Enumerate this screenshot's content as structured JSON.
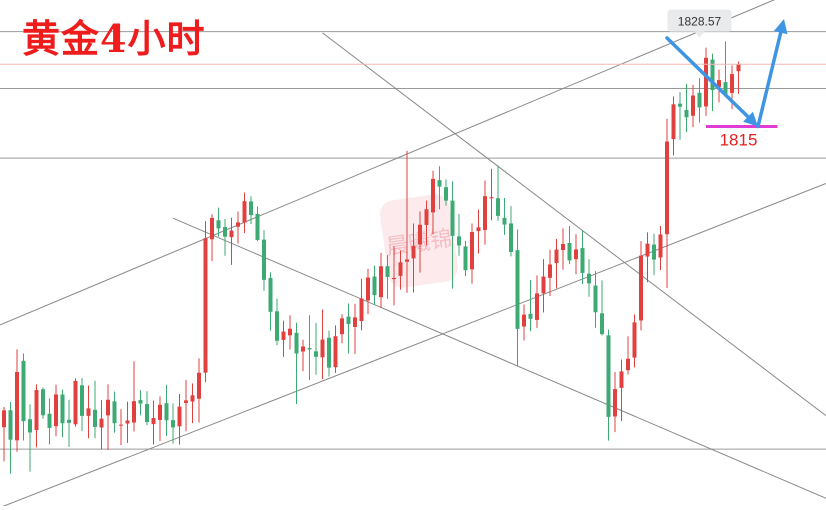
{
  "title": "黄金4小时",
  "watermark": "晨曦锦",
  "colors": {
    "up": "#e0413f",
    "down": "#3daa73",
    "grid": "#888888",
    "price_line": "#f3b6b4",
    "support": "#e13bd6",
    "label_red": "#e62020",
    "arrow": "#3e95e4",
    "tag_bg": "#e9eaec",
    "watermark": "#e86a78"
  },
  "chart_data": {
    "type": "candlestick",
    "title": "黄金4小时",
    "x": "time (4h bars)",
    "ylim": [
      1755.0,
      1835.0
    ],
    "horizontal_levels": [
      1810.0,
      1821.0,
      1830.0,
      1764.0
    ],
    "current_price_label": "1828.57",
    "support_label": "1815",
    "trendlines": [
      {
        "x": [
          0,
          124
        ],
        "y": [
          1783.9,
          1837.4
        ]
      },
      {
        "x": [
          0,
          124
        ],
        "y": [
          1755.0,
          1805.0
        ]
      },
      {
        "x": [
          26,
          124
        ],
        "y": [
          1800.5,
          1757.3
        ]
      },
      {
        "x": [
          49,
          124
        ],
        "y": [
          1829.8,
          1771.2
        ]
      },
      {
        "x": [
          102,
          116
        ],
        "y": [
          1829.0,
          1815.0
        ]
      },
      {
        "x": [
          116,
          120
        ],
        "y": [
          1815.0,
          1832.0
        ]
      }
    ],
    "candles": [
      [
        1767.46,
        1770.66,
        1762.06,
        1770.13
      ],
      [
        1770.14,
        1771.45,
        1760.09,
        1765.48
      ],
      [
        1765.38,
        1779.76,
        1763.57,
        1776.19
      ],
      [
        1777.95,
        1779.14,
        1765.35,
        1768.42
      ],
      [
        1768.72,
        1771.06,
        1760.44,
        1766.63
      ],
      [
        1767.02,
        1774.22,
        1764.26,
        1773.33
      ],
      [
        1773.46,
        1773.75,
        1768.8,
        1769.35
      ],
      [
        1769.59,
        1771.99,
        1764.75,
        1767.35
      ],
      [
        1767.62,
        1774.19,
        1766.03,
        1772.64
      ],
      [
        1772.63,
        1773.38,
        1765.87,
        1768.08
      ],
      [
        1768.63,
        1771.77,
        1764.33,
        1768.15
      ],
      [
        1767.92,
        1775.18,
        1767.55,
        1774.77
      ],
      [
        1774.08,
        1775.22,
        1766.83,
        1769.25
      ],
      [
        1769.25,
        1774.06,
        1765.71,
        1770.44
      ],
      [
        1770.21,
        1774.8,
        1765.72,
        1767.49
      ],
      [
        1767.41,
        1771.75,
        1763.94,
        1768.81
      ],
      [
        1769.32,
        1774.24,
        1763.88,
        1771.8
      ],
      [
        1771.54,
        1773.1,
        1766.61,
        1768.09
      ],
      [
        1767.82,
        1770.29,
        1764.63,
        1767.86
      ],
      [
        1768.04,
        1771.5,
        1764.99,
        1768.52
      ],
      [
        1768.2,
        1777.88,
        1766.78,
        1771.57
      ],
      [
        1771.75,
        1773.32,
        1769.32,
        1771.19
      ],
      [
        1771.13,
        1773.14,
        1767.76,
        1768.28
      ],
      [
        1767.95,
        1771.68,
        1764.73,
        1768.91
      ],
      [
        1768.61,
        1772.33,
        1765.25,
        1771.01
      ],
      [
        1771.26,
        1774.17,
        1766.06,
        1768.54
      ],
      [
        1768.57,
        1771.22,
        1764.87,
        1767.42
      ],
      [
        1767.6,
        1772.7,
        1764.71,
        1770.72
      ],
      [
        1771.29,
        1774.94,
        1766.82,
        1771.7
      ],
      [
        1771.52,
        1774.38,
        1768.1,
        1772.5
      ],
      [
        1771.96,
        1778.36,
        1768.19,
        1776.06
      ],
      [
        1776.08,
        1800.04,
        1774.58,
        1797.34
      ],
      [
        1797.17,
        1801.13,
        1793.72,
        1800.55
      ],
      [
        1800.18,
        1802.17,
        1797.58,
        1798.88
      ],
      [
        1799.1,
        1800.37,
        1794.57,
        1797.59
      ],
      [
        1797.5,
        1800.57,
        1793.13,
        1798.55
      ],
      [
        1799.15,
        1801.56,
        1796.49,
        1799.84
      ],
      [
        1799.82,
        1804.56,
        1798.15,
        1803.19
      ],
      [
        1803.16,
        1803.98,
        1799.57,
        1801.0
      ],
      [
        1801.17,
        1802.38,
        1796.88,
        1797.06
      ],
      [
        1797.11,
        1798.61,
        1789.02,
        1790.75
      ],
      [
        1791.06,
        1791.94,
        1782.71,
        1785.7
      ],
      [
        1785.78,
        1787.76,
        1780.43,
        1781.12
      ],
      [
        1781.26,
        1784.31,
        1778.58,
        1782.58
      ],
      [
        1781.98,
        1785.15,
        1779.74,
        1783.03
      ],
      [
        1782.38,
        1783.98,
        1771.13,
        1779.11
      ],
      [
        1779.43,
        1781.28,
        1776.32,
        1780.21
      ],
      [
        1779.99,
        1785.16,
        1774.9,
        1779.75
      ],
      [
        1779.46,
        1783.96,
        1775.76,
        1778.59
      ],
      [
        1778.51,
        1786.05,
        1775.06,
        1781.31
      ],
      [
        1781.6,
        1782.7,
        1775.47,
        1776.88
      ],
      [
        1776.95,
        1783.56,
        1776.04,
        1781.84
      ],
      [
        1782.17,
        1785.32,
        1780.75,
        1784.67
      ],
      [
        1784.95,
        1787.01,
        1779.09,
        1783.77
      ],
      [
        1783.31,
        1786.98,
        1779.03,
        1784.82
      ],
      [
        1784.24,
        1790.92,
        1782.79,
        1787.8
      ],
      [
        1787.49,
        1792.5,
        1785.34,
        1791.12
      ],
      [
        1791.28,
        1793.0,
        1786.77,
        1788.33
      ],
      [
        1788.02,
        1795.03,
        1786.33,
        1792.9
      ],
      [
        1792.92,
        1794.69,
        1787.74,
        1791.21
      ],
      [
        1790.87,
        1796.05,
        1786.72,
        1791.05
      ],
      [
        1791.38,
        1795.38,
        1789.2,
        1793.52
      ],
      [
        1793.62,
        1811.16,
        1788.71,
        1793.97
      ],
      [
        1794.15,
        1799.66,
        1788.75,
        1796.13
      ],
      [
        1796.34,
        1801.56,
        1791.89,
        1799.47
      ],
      [
        1799.44,
        1803.31,
        1796.19,
        1801.92
      ],
      [
        1801.42,
        1808.0,
        1797.95,
        1806.72
      ],
      [
        1806.52,
        1808.72,
        1801.91,
        1805.5
      ],
      [
        1805.4,
        1806.65,
        1802.5,
        1803.28
      ],
      [
        1803.28,
        1806.34,
        1789.37,
        1797.71
      ],
      [
        1797.63,
        1801.19,
        1794.56,
        1796.19
      ],
      [
        1796.04,
        1796.94,
        1791.35,
        1792.28
      ],
      [
        1792.42,
        1799.67,
        1790.14,
        1798.32
      ],
      [
        1798.47,
        1801.87,
        1794.9,
        1799.06
      ],
      [
        1798.64,
        1806.47,
        1796.33,
        1803.98
      ],
      [
        1803.64,
        1808.33,
        1800.16,
        1803.82
      ],
      [
        1803.66,
        1808.86,
        1800.07,
        1800.87
      ],
      [
        1800.56,
        1803.69,
        1797.86,
        1799.49
      ],
      [
        1799.68,
        1802.42,
        1794.47,
        1795.16
      ],
      [
        1795.44,
        1798.71,
        1777.12,
        1783.0
      ],
      [
        1783.37,
        1786.86,
        1781.16,
        1785.25
      ],
      [
        1785.38,
        1790.76,
        1782.64,
        1784.6
      ],
      [
        1784.42,
        1791.47,
        1783.17,
        1788.61
      ],
      [
        1788.63,
        1794.04,
        1785.59,
        1791.28
      ],
      [
        1791.07,
        1795.52,
        1788.2,
        1793.19
      ],
      [
        1793.42,
        1797.24,
        1789.4,
        1795.54
      ],
      [
        1795.46,
        1798.91,
        1792.37,
        1796.42
      ],
      [
        1796.58,
        1799.28,
        1793.24,
        1793.84
      ],
      [
        1794.03,
        1797.97,
        1791.65,
        1795.56
      ],
      [
        1795.78,
        1798.58,
        1790.06,
        1791.85
      ],
      [
        1791.72,
        1794.02,
        1788.09,
        1790.19
      ],
      [
        1789.85,
        1792.14,
        1783.19,
        1785.63
      ],
      [
        1785.47,
        1790.67,
        1781.95,
        1782.17
      ],
      [
        1781.98,
        1782.88,
        1765.34,
        1769.09
      ],
      [
        1769.16,
        1776.18,
        1766.67,
        1773.48
      ],
      [
        1773.67,
        1778.16,
        1768.44,
        1776.28
      ],
      [
        1776.48,
        1781.84,
        1775.8,
        1778.29
      ],
      [
        1778.46,
        1785.3,
        1776.89,
        1784.03
      ],
      [
        1784.33,
        1796.88,
        1782.76,
        1794.58
      ],
      [
        1794.44,
        1798.27,
        1790.37,
        1796.47
      ],
      [
        1796.33,
        1798.05,
        1791.51,
        1793.96
      ],
      [
        1794.28,
        1799.26,
        1792.31,
        1797.93
      ],
      [
        1797.97,
        1816.22,
        1789.47,
        1812.63
      ],
      [
        1813.0,
        1819.75,
        1810.44,
        1818.51
      ],
      [
        1818.61,
        1820.44,
        1812.91,
        1818.13
      ],
      [
        1817.63,
        1821.75,
        1814.09,
        1816.46
      ],
      [
        1816.7,
        1821.61,
        1814.91,
        1819.9
      ],
      [
        1820.33,
        1822.65,
        1815.63,
        1818.02
      ],
      [
        1818.17,
        1827.48,
        1816.67,
        1825.86
      ],
      [
        1825.57,
        1826.53,
        1817.43,
        1820.76
      ],
      [
        1821.22,
        1823.99,
        1818.82,
        1822.34
      ],
      [
        1822.02,
        1828.46,
        1819.91,
        1820.09
      ],
      [
        1820.31,
        1824.67,
        1817.75,
        1823.29
      ],
      [
        1823.74,
        1825.28,
        1820.15,
        1824.85
      ]
    ]
  }
}
